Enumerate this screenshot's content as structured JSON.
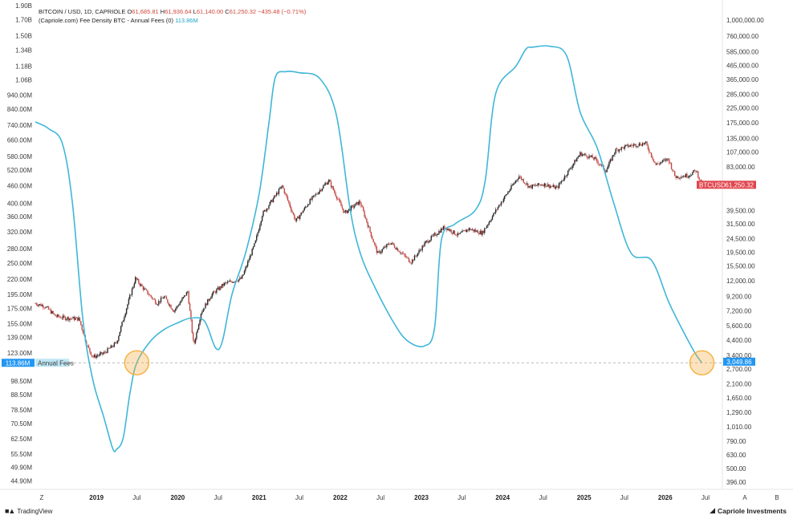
{
  "legend": {
    "symbol_line": "BITCOIN / USD, 1D, CAPRIOLE",
    "open_label": "O",
    "open": "61,685.81",
    "high_label": "H",
    "high": "61,936.64",
    "low_label": "L",
    "low": "61,140.00",
    "close_label": "C",
    "close": "61,250.32",
    "change": "−435.48 (−0.71%)",
    "indicator": "(Capriole.com) Fee Density BTC - Annual Fees (0)",
    "indicator_value": "113.86M"
  },
  "footer": {
    "left_brand": "TradingView",
    "right_brand": "Capriole Investments",
    "z_label": "Z",
    "a_label": "A",
    "b_label": "B"
  },
  "colors": {
    "fees_line": "#3fb7d8",
    "up_candle": "#2a2a2a",
    "down_candle": "#c24a45",
    "price_badge": "#e0464f",
    "fees_badge": "#2196f3",
    "highlight": "#f5b041"
  },
  "chart_data": {
    "type": "line",
    "left_axis": {
      "scale": "log",
      "ylim": [
        42000000,
        1950000000
      ],
      "ticks": [
        {
          "v": 1900000000,
          "t": "1.90B"
        },
        {
          "v": 1700000000,
          "t": "1.70B"
        },
        {
          "v": 1500000000,
          "t": "1.50B"
        },
        {
          "v": 1340000000,
          "t": "1.34B"
        },
        {
          "v": 1180000000,
          "t": "1.18B"
        },
        {
          "v": 1060000000,
          "t": "1.06B"
        },
        {
          "v": 940000000,
          "t": "940.00M"
        },
        {
          "v": 840000000,
          "t": "840.00M"
        },
        {
          "v": 740000000,
          "t": "740.00M"
        },
        {
          "v": 660000000,
          "t": "660.00M"
        },
        {
          "v": 580000000,
          "t": "580.00M"
        },
        {
          "v": 520000000,
          "t": "520.00M"
        },
        {
          "v": 460000000,
          "t": "460.00M"
        },
        {
          "v": 400000000,
          "t": "400.00M"
        },
        {
          "v": 360000000,
          "t": "360.00M"
        },
        {
          "v": 320000000,
          "t": "320.00M"
        },
        {
          "v": 280000000,
          "t": "280.00M"
        },
        {
          "v": 250000000,
          "t": "250.00M"
        },
        {
          "v": 220000000,
          "t": "220.00M"
        },
        {
          "v": 195000000,
          "t": "195.00M"
        },
        {
          "v": 175000000,
          "t": "175.00M"
        },
        {
          "v": 155000000,
          "t": "155.00M"
        },
        {
          "v": 139000000,
          "t": "139.00M"
        },
        {
          "v": 123000000,
          "t": "123.00M"
        },
        {
          "v": 98500000,
          "t": "98.50M"
        },
        {
          "v": 88500000,
          "t": "88.50M"
        },
        {
          "v": 78500000,
          "t": "78.50M"
        },
        {
          "v": 70500000,
          "t": "70.50M"
        },
        {
          "v": 62500000,
          "t": "62.50M"
        },
        {
          "v": 55500000,
          "t": "55.50M"
        },
        {
          "v": 49900000,
          "t": "49.90M"
        },
        {
          "v": 44900000,
          "t": "44.90M"
        }
      ]
    },
    "right_axis": {
      "scale": "log",
      "ylim": [
        350,
        1350000
      ],
      "ticks": [
        {
          "v": 1000000,
          "t": "1,000,000.00"
        },
        {
          "v": 760000,
          "t": "760,000.00"
        },
        {
          "v": 585000,
          "t": "585,000.00"
        },
        {
          "v": 465000,
          "t": "465,000.00"
        },
        {
          "v": 365000,
          "t": "365,000.00"
        },
        {
          "v": 285000,
          "t": "285,000.00"
        },
        {
          "v": 225000,
          "t": "225,000.00"
        },
        {
          "v": 175000,
          "t": "175,000.00"
        },
        {
          "v": 135000,
          "t": "135,000.00"
        },
        {
          "v": 107000,
          "t": "107,000.00"
        },
        {
          "v": 83000,
          "t": "83,000.00"
        },
        {
          "v": 39500,
          "t": "39,500.00"
        },
        {
          "v": 31500,
          "t": "31,500.00"
        },
        {
          "v": 24500,
          "t": "24,500.00"
        },
        {
          "v": 19500,
          "t": "19,500.00"
        },
        {
          "v": 15500,
          "t": "15,500.00"
        },
        {
          "v": 12000,
          "t": "12,000.00"
        },
        {
          "v": 9200,
          "t": "9,200.00"
        },
        {
          "v": 7200,
          "t": "7,200.00"
        },
        {
          "v": 5600,
          "t": "5,600.00"
        },
        {
          "v": 4400,
          "t": "4,400.00"
        },
        {
          "v": 3400,
          "t": "3,400.00"
        },
        {
          "v": 2700,
          "t": "2,700.00"
        },
        {
          "v": 2100,
          "t": "2,100.00"
        },
        {
          "v": 1650,
          "t": "1,650.00"
        },
        {
          "v": 1290,
          "t": "1,290.00"
        },
        {
          "v": 1010,
          "t": "1,010.00"
        },
        {
          "v": 790,
          "t": "790.00"
        },
        {
          "v": 630,
          "t": "630.00"
        },
        {
          "v": 500,
          "t": "500.00"
        },
        {
          "v": 396,
          "t": "396.00"
        }
      ]
    },
    "x_axis": {
      "range": [
        "2018-04-01",
        "2026-09-15"
      ],
      "ticks": [
        {
          "d": "2019-01-01",
          "t": "2019",
          "bold": true
        },
        {
          "d": "2019-07-01",
          "t": "Jul",
          "bold": false
        },
        {
          "d": "2020-01-01",
          "t": "2020",
          "bold": true
        },
        {
          "d": "2020-07-01",
          "t": "Jul",
          "bold": false
        },
        {
          "d": "2021-01-01",
          "t": "2021",
          "bold": true
        },
        {
          "d": "2021-07-01",
          "t": "Jul",
          "bold": false
        },
        {
          "d": "2022-01-01",
          "t": "2022",
          "bold": true
        },
        {
          "d": "2022-07-01",
          "t": "Jul",
          "bold": false
        },
        {
          "d": "2023-01-01",
          "t": "2023",
          "bold": true
        },
        {
          "d": "2023-07-01",
          "t": "Jul",
          "bold": false
        },
        {
          "d": "2024-01-01",
          "t": "2024",
          "bold": true
        },
        {
          "d": "2024-07-01",
          "t": "Jul",
          "bold": false
        },
        {
          "d": "2025-01-01",
          "t": "2025",
          "bold": true
        },
        {
          "d": "2025-07-01",
          "t": "Jul",
          "bold": false
        },
        {
          "d": "2026-01-01",
          "t": "2026",
          "bold": true
        },
        {
          "d": "2026-07-01",
          "t": "Jul",
          "bold": false
        }
      ]
    },
    "series": [
      {
        "name": "Annual Fees",
        "axis": "left",
        "points": [
          [
            "2018-04-01",
            760000000
          ],
          [
            "2018-06-01",
            720000000
          ],
          [
            "2018-08-01",
            640000000
          ],
          [
            "2018-09-15",
            400000000
          ],
          [
            "2018-11-01",
            160000000
          ],
          [
            "2018-12-15",
            100000000
          ],
          [
            "2019-02-01",
            75000000
          ],
          [
            "2019-03-15",
            58000000
          ],
          [
            "2019-04-01",
            57500000
          ],
          [
            "2019-05-01",
            63000000
          ],
          [
            "2019-06-01",
            90000000
          ],
          [
            "2019-07-01",
            113860000
          ],
          [
            "2019-09-01",
            135000000
          ],
          [
            "2019-11-01",
            148000000
          ],
          [
            "2020-01-01",
            156000000
          ],
          [
            "2020-03-01",
            162000000
          ],
          [
            "2020-05-01",
            158000000
          ],
          [
            "2020-06-20",
            128000000
          ],
          [
            "2020-07-20",
            135000000
          ],
          [
            "2020-09-01",
            195000000
          ],
          [
            "2020-11-01",
            270000000
          ],
          [
            "2021-01-01",
            430000000
          ],
          [
            "2021-02-15",
            760000000
          ],
          [
            "2021-03-15",
            1080000000
          ],
          [
            "2021-05-01",
            1130000000
          ],
          [
            "2021-07-01",
            1120000000
          ],
          [
            "2021-10-01",
            1070000000
          ],
          [
            "2021-12-15",
            800000000
          ],
          [
            "2022-02-15",
            380000000
          ],
          [
            "2022-04-01",
            270000000
          ],
          [
            "2022-06-01",
            210000000
          ],
          [
            "2022-09-01",
            155000000
          ],
          [
            "2022-11-01",
            135000000
          ],
          [
            "2023-01-15",
            130000000
          ],
          [
            "2023-03-01",
            150000000
          ],
          [
            "2023-04-01",
            300000000
          ],
          [
            "2023-06-01",
            340000000
          ],
          [
            "2023-09-01",
            380000000
          ],
          [
            "2023-10-15",
            480000000
          ],
          [
            "2023-12-01",
            950000000
          ],
          [
            "2024-03-01",
            1180000000
          ],
          [
            "2024-04-15",
            1350000000
          ],
          [
            "2024-05-15",
            1370000000
          ],
          [
            "2024-08-01",
            1380000000
          ],
          [
            "2024-10-15",
            1280000000
          ],
          [
            "2024-12-15",
            820000000
          ],
          [
            "2025-03-01",
            620000000
          ],
          [
            "2025-05-15",
            400000000
          ],
          [
            "2025-08-01",
            270000000
          ],
          [
            "2025-11-01",
            255000000
          ],
          [
            "2026-01-15",
            185000000
          ],
          [
            "2026-03-15",
            150000000
          ],
          [
            "2026-05-15",
            123000000
          ],
          [
            "2026-06-15",
            113860000
          ]
        ]
      },
      {
        "name": "BTCUSD",
        "axis": "right",
        "points": [
          [
            "2018-04-01",
            8200
          ],
          [
            "2018-05-15",
            7800
          ],
          [
            "2018-07-01",
            6600
          ],
          [
            "2018-08-15",
            6400
          ],
          [
            "2018-10-15",
            6300
          ],
          [
            "2018-11-20",
            4000
          ],
          [
            "2018-12-15",
            3300
          ],
          [
            "2019-02-01",
            3500
          ],
          [
            "2019-04-01",
            4200
          ],
          [
            "2019-05-15",
            7500
          ],
          [
            "2019-06-25",
            12500
          ],
          [
            "2019-08-01",
            10500
          ],
          [
            "2019-10-01",
            8200
          ],
          [
            "2019-11-01",
            9200
          ],
          [
            "2019-12-15",
            7200
          ],
          [
            "2020-02-15",
            10000
          ],
          [
            "2020-03-13",
            4000
          ],
          [
            "2020-04-15",
            7000
          ],
          [
            "2020-06-01",
            9500
          ],
          [
            "2020-08-01",
            11500
          ],
          [
            "2020-10-15",
            12500
          ],
          [
            "2020-12-15",
            23000
          ],
          [
            "2021-01-15",
            37000
          ],
          [
            "2021-04-15",
            60000
          ],
          [
            "2021-06-15",
            33000
          ],
          [
            "2021-08-15",
            46000
          ],
          [
            "2021-11-10",
            66000
          ],
          [
            "2022-01-20",
            38000
          ],
          [
            "2022-03-30",
            46000
          ],
          [
            "2022-06-18",
            19000
          ],
          [
            "2022-08-15",
            23000
          ],
          [
            "2022-11-15",
            16500
          ],
          [
            "2023-01-20",
            23000
          ],
          [
            "2023-04-15",
            30000
          ],
          [
            "2023-06-15",
            26000
          ],
          [
            "2023-08-01",
            29000
          ],
          [
            "2023-10-01",
            27000
          ],
          [
            "2023-12-15",
            43000
          ],
          [
            "2024-03-14",
            71000
          ],
          [
            "2024-05-01",
            59000
          ],
          [
            "2024-07-01",
            62000
          ],
          [
            "2024-09-01",
            58000
          ],
          [
            "2024-12-15",
            104000
          ],
          [
            "2025-02-15",
            96000
          ],
          [
            "2025-04-10",
            78000
          ],
          [
            "2025-05-22",
            110000
          ],
          [
            "2025-07-15",
            118000
          ],
          [
            "2025-10-05",
            124000
          ],
          [
            "2025-11-20",
            86000
          ],
          [
            "2026-01-15",
            95000
          ],
          [
            "2026-02-15",
            70000
          ],
          [
            "2026-04-15",
            72000
          ],
          [
            "2026-05-20",
            78000
          ],
          [
            "2026-06-15",
            61250
          ]
        ]
      }
    ],
    "hline": {
      "value": 113860000,
      "axis": "left",
      "label": "Annual Fees",
      "badge": "113.86M"
    },
    "right_badges": [
      {
        "name": "BTCUSD",
        "value": 61250.32,
        "text": "61,250.32"
      },
      {
        "name": "fees-on-right",
        "value": 3049.86,
        "text": "3,049.86"
      }
    ],
    "highlights": [
      {
        "date": "2019-07-01",
        "value": 113860000
      },
      {
        "date": "2026-06-15",
        "value": 113860000
      }
    ]
  }
}
